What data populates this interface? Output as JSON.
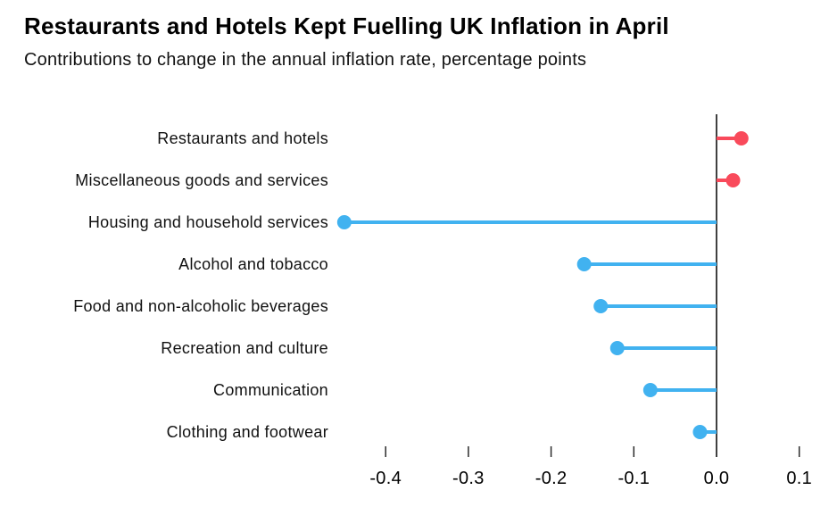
{
  "header": {
    "title": "Restaurants and Hotels Kept Fuelling UK Inflation in April",
    "subtitle": "Contributions to change in the annual inflation rate, percentage points"
  },
  "chart_data": {
    "type": "bar",
    "style": "lollipop",
    "orientation": "horizontal",
    "title": "Restaurants and Hotels Kept Fuelling UK Inflation in April",
    "subtitle": "Contributions to change in the annual inflation rate, percentage points",
    "categories": [
      "Restaurants and hotels",
      "Miscellaneous goods and services",
      "Housing and household services",
      "Alcohol and tobacco",
      "Food and non-alcoholic beverages",
      "Recreation and culture",
      "Communication",
      "Clothing and footwear"
    ],
    "values": [
      0.03,
      0.02,
      -0.45,
      -0.16,
      -0.14,
      -0.12,
      -0.08,
      -0.02
    ],
    "xlabel": "",
    "ylabel": "",
    "xlim": [
      -0.47,
      0.13
    ],
    "x_ticks": [
      -0.4,
      -0.3,
      -0.2,
      -0.1,
      0.0,
      0.1
    ],
    "x_tick_labels": [
      "-0.4",
      "-0.3",
      "-0.2",
      "-0.1",
      "0.0",
      "0.1"
    ],
    "grid": false,
    "legend": false,
    "colors": {
      "positive": "#F94A5B",
      "negative": "#41B2F0",
      "axis": "#000000",
      "tick": "#2b2b2b"
    }
  }
}
